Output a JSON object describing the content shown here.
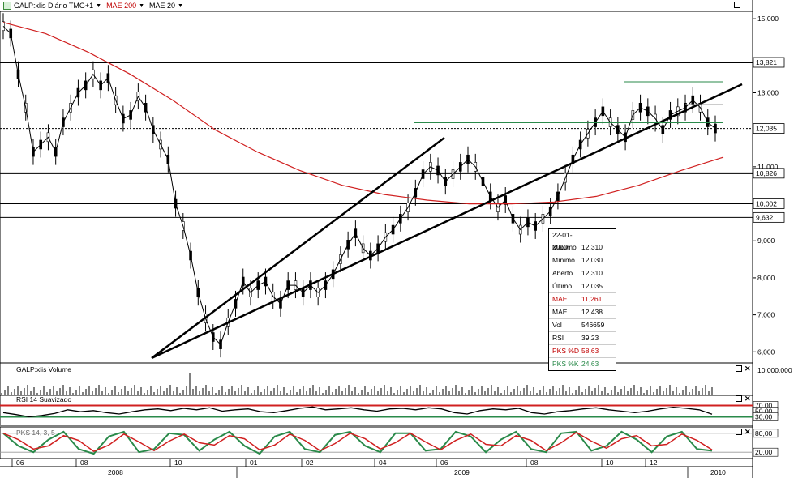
{
  "toolbar": {
    "symbol_label": "GALP:xlis Diário TMG+1",
    "mae200_label": "MAE 200",
    "mae20_label": "MAE 20"
  },
  "panels": {
    "volume_title": "GALP:xlis Volume",
    "rsi_title": "RSI 14 Suavizado",
    "pks_title": "PKS 14, 3, 5"
  },
  "info_box": {
    "date": "22-01-2010",
    "rows": [
      {
        "label": "Máximo",
        "value": "12,310",
        "color": "#000000"
      },
      {
        "label": "Mínimo",
        "value": "12,030",
        "color": "#000000"
      },
      {
        "label": "Aberto",
        "value": "12,310",
        "color": "#000000"
      },
      {
        "label": "Último",
        "value": "12,035",
        "color": "#000000"
      },
      {
        "label": "MAE",
        "value": "11,261",
        "color": "#c00000"
      },
      {
        "label": "MAE",
        "value": "12,438",
        "color": "#000000"
      },
      {
        "label": "Vol",
        "value": "546659",
        "color": "#000000"
      },
      {
        "label": "RSI",
        "value": "39,23",
        "color": "#000000"
      },
      {
        "label": "PKS %D",
        "value": "58,63",
        "color": "#c00000"
      },
      {
        "label": "PKS %K",
        "value": "24,63",
        "color": "#2a8a4a"
      }
    ]
  },
  "chart_data": {
    "type": "line",
    "price_ticks": [
      "15,000",
      "13,000",
      "11,000",
      "9,000",
      "8,000",
      "7,000",
      "6,000"
    ],
    "price_levels": [
      {
        "value": "13,821",
        "boxed": true
      },
      {
        "value": "12,035",
        "boxed": true
      },
      {
        "value": "10,826",
        "boxed": true
      },
      {
        "value": "10,002",
        "boxed": true
      },
      {
        "value": "9,632",
        "boxed": true
      }
    ],
    "volume_tick": "10.000.000",
    "rsi_ticks": [
      "70,00",
      "50,00",
      "30,00"
    ],
    "pks_ticks": [
      "80,00",
      "20,00"
    ],
    "months": [
      "06",
      "08",
      "10",
      "01",
      "02",
      "04",
      "06",
      "08",
      "10",
      "12"
    ],
    "years": [
      "2008",
      "2009",
      "2010"
    ],
    "colors": {
      "price": "#000000",
      "mae200": "#d02020",
      "mae20": "#000000",
      "support_green": "#2a8a4a"
    },
    "close_series": [
      14.8,
      14.6,
      13.5,
      12.6,
      11.4,
      11.6,
      11.8,
      11.4,
      12.2,
      12.6,
      13.0,
      13.2,
      13.5,
      13.2,
      13.4,
      12.8,
      12.3,
      12.4,
      12.9,
      12.6,
      12.0,
      11.6,
      11.2,
      10.0,
      9.4,
      8.6,
      7.6,
      6.9,
      6.4,
      6.2,
      6.8,
      7.3,
      7.9,
      7.6,
      7.8,
      7.9,
      7.5,
      7.3,
      7.8,
      7.8,
      7.6,
      7.8,
      7.6,
      7.8,
      8.1,
      8.5,
      8.9,
      9.2,
      8.8,
      8.6,
      8.8,
      9.1,
      9.3,
      9.6,
      9.9,
      10.3,
      10.8,
      11.0,
      10.9,
      10.6,
      10.8,
      11.0,
      11.2,
      11.0,
      10.6,
      10.2,
      9.9,
      10.1,
      9.6,
      9.3,
      9.5,
      9.4,
      9.6,
      9.8,
      10.2,
      10.7,
      11.2,
      11.6,
      11.9,
      12.2,
      12.5,
      12.2,
      12.0,
      11.8,
      12.4,
      12.6,
      12.5,
      12.3,
      12.0,
      12.4,
      12.5,
      12.6,
      12.8,
      12.6,
      12.2,
      12.035
    ],
    "mae200_series": [
      14.9,
      14.6,
      14.1,
      13.5,
      12.8,
      12.0,
      11.4,
      10.9,
      10.5,
      10.25,
      10.1,
      10.0,
      10.0,
      10.05,
      10.2,
      10.5,
      10.9,
      11.261
    ],
    "rsi_series": [
      45,
      38,
      30,
      35,
      42,
      55,
      48,
      52,
      45,
      40,
      48,
      55,
      58,
      52,
      60,
      55,
      62,
      50,
      55,
      58,
      48,
      45,
      52,
      60,
      65,
      55,
      58,
      62,
      55,
      50,
      58,
      60,
      55,
      62,
      58,
      45,
      40,
      52,
      58,
      55,
      60,
      45,
      40,
      48,
      52,
      58,
      62,
      55,
      50,
      45,
      50,
      58,
      64,
      60,
      55,
      39.23
    ],
    "pks_series": [
      80,
      40,
      20,
      60,
      85,
      30,
      15,
      70,
      85,
      20,
      30,
      80,
      75,
      25,
      60,
      85,
      40,
      15,
      70,
      85,
      30,
      20,
      75,
      85,
      40,
      20,
      80,
      80,
      25,
      30,
      85,
      70,
      20,
      60,
      85,
      30,
      20,
      80,
      85,
      25,
      40,
      85,
      60,
      20,
      70,
      85,
      30,
      24.63
    ]
  }
}
